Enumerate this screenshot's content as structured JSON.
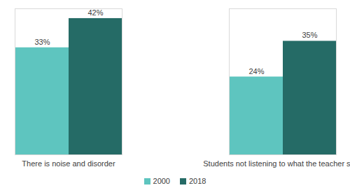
{
  "chart_data": {
    "type": "bar",
    "categories": [
      "There is noise and disorder",
      "Students not listening to what the teacher says"
    ],
    "series": [
      {
        "name": "2000",
        "color": "#5ec5bf",
        "values": [
          33,
          24
        ],
        "value_labels": [
          "33%",
          "24%"
        ]
      },
      {
        "name": "2018",
        "color": "#256b66",
        "values": [
          42,
          35
        ],
        "value_labels": [
          "42%",
          "35%"
        ]
      }
    ],
    "ylim": [
      0,
      45
    ],
    "grid": false,
    "data_labels": true,
    "tick_labels": "x",
    "legend": "bottom"
  }
}
